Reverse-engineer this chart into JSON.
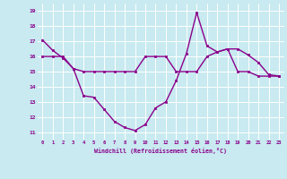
{
  "line1": [
    17.1,
    16.4,
    15.9,
    15.2,
    13.4,
    13.3,
    12.5,
    11.7,
    11.3,
    11.1,
    11.5,
    12.6,
    13.0,
    14.4,
    16.2,
    18.9,
    16.7,
    16.3,
    16.5,
    16.5,
    16.1,
    15.6,
    14.8,
    14.7
  ],
  "line2": [
    16.0,
    16.0,
    16.0,
    15.2,
    15.0,
    15.0,
    15.0,
    15.0,
    15.0,
    15.0,
    16.0,
    16.0,
    16.0,
    15.0,
    15.0,
    15.0,
    16.0,
    16.3,
    16.5,
    15.0,
    15.0,
    14.7,
    14.7,
    14.7
  ],
  "x": [
    0,
    1,
    2,
    3,
    4,
    5,
    6,
    7,
    8,
    9,
    10,
    11,
    12,
    13,
    14,
    15,
    16,
    17,
    18,
    19,
    20,
    21,
    22,
    23
  ],
  "xtick_labels": [
    "0",
    "1",
    "2",
    "3",
    "4",
    "5",
    "6",
    "7",
    "8",
    "9",
    "10",
    "11",
    "12",
    "13",
    "14",
    "15",
    "16",
    "17",
    "18",
    "19",
    "20",
    "21",
    "22",
    "23"
  ],
  "ytick_values": [
    11,
    12,
    13,
    14,
    15,
    16,
    17,
    18,
    19
  ],
  "ylim": [
    10.5,
    19.5
  ],
  "xlim": [
    -0.5,
    23.5
  ],
  "line_color": "#8b008b",
  "bg_color": "#c8eaf0",
  "grid_color": "#ffffff",
  "xlabel": "Windchill (Refroidissement éolien,°C)",
  "marker": "s",
  "marker_size": 2.0,
  "line_width": 1.0
}
